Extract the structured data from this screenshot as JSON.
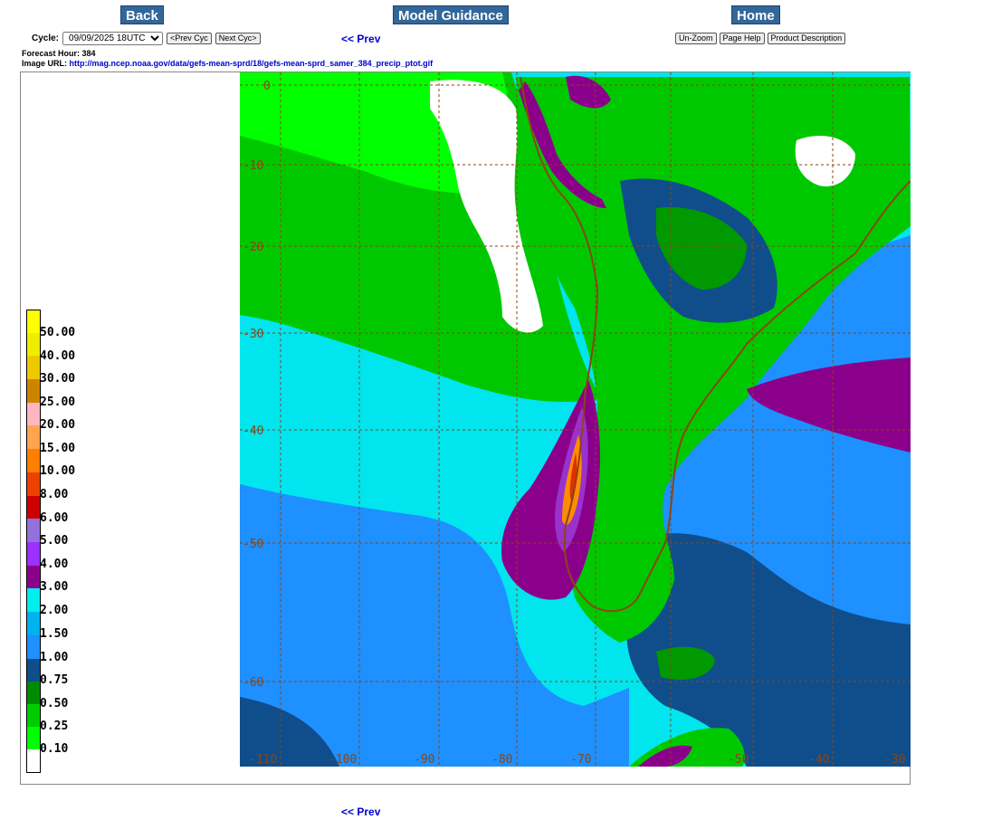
{
  "nav": {
    "back_label": "Back",
    "guidance_label": "Model Guidance",
    "home_label": "Home"
  },
  "cycle": {
    "label": "Cycle:",
    "selected": "09/09/2025 18UTC",
    "prev_label": "<Prev Cyc",
    "next_label": "Next Cyc>"
  },
  "prev_link": "<< Prev",
  "buttons": {
    "unzoom": "Un-Zoom",
    "help": "Page Help",
    "description": "Product Description"
  },
  "meta": {
    "forecast_label": "Forecast Hour: 384",
    "url_label": "Image URL:",
    "url": "http://mag.ncep.noaa.gov/data/gefs-mean-sprd/18/gefs-mean-sprd_samer_384_precip_ptot.gif"
  },
  "map": {
    "lat_labels": [
      "0",
      "-10",
      "-20",
      "-30",
      "-40",
      "-50",
      "-60"
    ],
    "lon_labels": [
      "-110",
      "-100",
      "-90",
      "-80",
      "-70",
      "-50",
      "-40",
      "-30"
    ],
    "colors": {
      "grid": "#8b4513",
      "land_green": "#00c800",
      "bright_green": "#00ff00",
      "dark_green": "#009900",
      "cyan": "#00e5ee",
      "azure": "#1e90ff",
      "navy": "#104e8b",
      "purple": "#8b008b",
      "violet": "#9932cc",
      "orange": "#ff8c00",
      "red": "#e03000"
    }
  },
  "legend": {
    "labels": [
      "50.00",
      "40.00",
      "30.00",
      "25.00",
      "20.00",
      "15.00",
      "10.00",
      "8.00",
      "6.00",
      "5.00",
      "4.00",
      "3.00",
      "2.00",
      "1.50",
      "1.00",
      "0.75",
      "0.50",
      "0.25",
      "0.10"
    ],
    "colors": [
      "#ffff00",
      "#eeee00",
      "#eec900",
      "#cd8500",
      "#ffb6c1",
      "#ffa54f",
      "#ff7f00",
      "#ee4000",
      "#cd0000",
      "#9370db",
      "#9b30ff",
      "#8b008b",
      "#00eeee",
      "#00b2ee",
      "#1e90ff",
      "#104e8b",
      "#008b00",
      "#00cd00",
      "#00ff00",
      "#ffffff"
    ]
  }
}
